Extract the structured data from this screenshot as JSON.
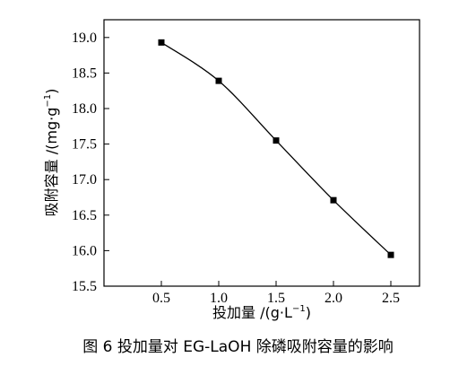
{
  "chart_data": {
    "type": "line",
    "title": "",
    "xlabel_main": "投加量 /(g·L",
    "xlabel_sup": "−1",
    "xlabel_end": ")",
    "ylabel_main": "吸附容量 /(mg·g",
    "ylabel_sup": "−1",
    "ylabel_end": ")",
    "xlim": [
      0,
      2.75
    ],
    "ylim": [
      15.5,
      19.25
    ],
    "x_ticks": [
      0.5,
      1.0,
      1.5,
      2.0,
      2.5
    ],
    "x_tick_labels": [
      "0.5",
      "1.0",
      "1.5",
      "2.0",
      "2.5"
    ],
    "y_ticks": [
      15.5,
      16.0,
      16.5,
      17.0,
      17.5,
      18.0,
      18.5,
      19.0
    ],
    "y_tick_labels": [
      "15.5",
      "16.0",
      "16.5",
      "17.0",
      "17.5",
      "18.0",
      "18.5",
      "19.0"
    ],
    "grid": false,
    "marker": "square",
    "series": [
      {
        "x": [
          0.5,
          1.0,
          1.5,
          2.0,
          2.5
        ],
        "values": [
          18.93,
          18.39,
          17.55,
          16.71,
          15.94
        ]
      }
    ]
  },
  "caption": "图 6  投加量对 EG-LaOH 除磷吸附容量的影响"
}
